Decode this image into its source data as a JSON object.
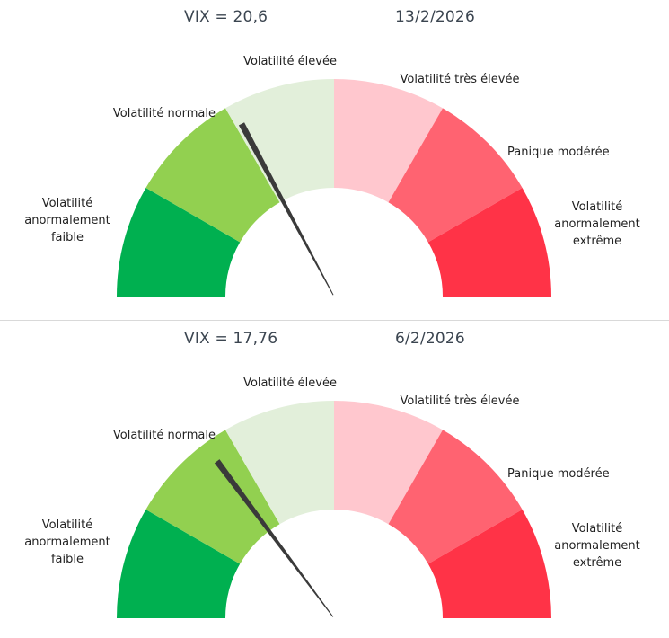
{
  "chart_data": [
    {
      "type": "gauge",
      "title_value": "VIX = 20,6",
      "date": "13/2/2026",
      "value": 20.6,
      "zones": [
        {
          "label": "Volatilité anormalement faible",
          "lines": [
            "Volatilité",
            "anormalement",
            "faible"
          ],
          "color": "#00b050",
          "from": 0,
          "to": 10
        },
        {
          "label": "Volatilité normale",
          "lines": [
            "Volatilité normale"
          ],
          "color": "#92d050",
          "from": 10,
          "to": 20
        },
        {
          "label": "Volatilité élevée",
          "lines": [
            "Volatilité élevée"
          ],
          "color": "#e2efda",
          "from": 20,
          "to": 30
        },
        {
          "label": "Volatilité très élevée",
          "lines": [
            "Volatilité très élevée"
          ],
          "color": "#ffc7ce",
          "from": 30,
          "to": 40
        },
        {
          "label": "Panique modérée",
          "lines": [
            "Panique modérée"
          ],
          "color": "#ff6371",
          "from": 40,
          "to": 50
        },
        {
          "label": "Volatilité anormalement extrême",
          "lines": [
            "Volatilité",
            "anormalement",
            "extrême"
          ],
          "color": "#ff3347",
          "from": 50,
          "to": 60
        }
      ],
      "range": [
        0,
        60
      ]
    },
    {
      "type": "gauge",
      "title_value": "VIX = 17,76",
      "date": "6/2/2026",
      "value": 17.76,
      "zones": [
        {
          "label": "Volatilité anormalement faible",
          "lines": [
            "Volatilité",
            "anormalement",
            "faible"
          ],
          "color": "#00b050",
          "from": 0,
          "to": 10
        },
        {
          "label": "Volatilité normale",
          "lines": [
            "Volatilité normale"
          ],
          "color": "#92d050",
          "from": 10,
          "to": 20
        },
        {
          "label": "Volatilité élevée",
          "lines": [
            "Volatilité élevée"
          ],
          "color": "#e2efda",
          "from": 20,
          "to": 30
        },
        {
          "label": "Volatilité très élevée",
          "lines": [
            "Volatilité très élevée"
          ],
          "color": "#ffc7ce",
          "from": 30,
          "to": 40
        },
        {
          "label": "Panique modérée",
          "lines": [
            "Panique modérée"
          ],
          "color": "#ff6371",
          "from": 40,
          "to": 50
        },
        {
          "label": "Volatilité anormalement extrême",
          "lines": [
            "Volatilité",
            "anormalement",
            "extrême"
          ],
          "color": "#ff3347",
          "from": 50,
          "to": 60
        }
      ],
      "range": [
        0,
        60
      ]
    }
  ],
  "colors": {
    "needle": "#3a3a3a",
    "title_text": "#3b4550",
    "label_text": "#222222",
    "divider": "#d9d9d9"
  }
}
